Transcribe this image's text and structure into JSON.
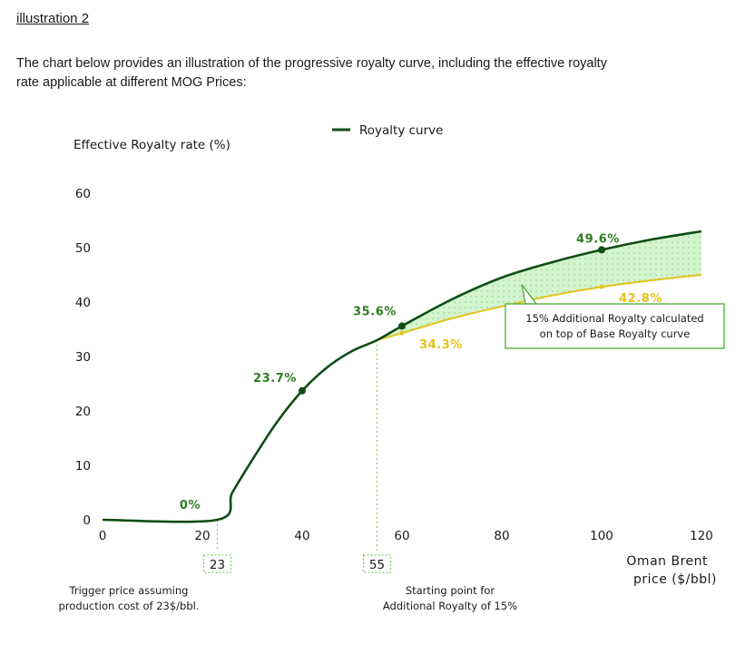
{
  "heading": "illustration 2",
  "intro": {
    "line1": "The chart below provides an illustration of the progressive royalty curve, including the effective royalty",
    "line2": "rate applicable at different MOG Prices:"
  },
  "colors": {
    "royalty_curve": "#0f4d14",
    "base_curve": "#e3c21a",
    "shaded_area": "#c9f0c4",
    "label_green": "#2e7d22",
    "label_yellow": "#e6c21a",
    "callout_border": "#4caf2f",
    "guide_line": "#7fcf6a"
  },
  "chart_data": {
    "type": "line",
    "ylabel": "Effective Royalty rate (%)",
    "xlabel_line1": "Oman Brent",
    "xlabel_line2": "price ($/bbl)",
    "legend": "Royalty curve",
    "xlim": [
      0,
      120
    ],
    "ylim": [
      0,
      60
    ],
    "x_ticks": [
      "0",
      "20",
      "40",
      "60",
      "80",
      "100",
      "120"
    ],
    "y_ticks": [
      "0",
      "10",
      "20",
      "30",
      "40",
      "50",
      "60"
    ],
    "series": [
      {
        "name": "Royalty curve",
        "x": [
          0,
          23,
          26,
          30,
          35,
          40,
          45,
          50,
          55,
          60,
          70,
          80,
          90,
          100,
          110,
          120
        ],
        "y": [
          0,
          0,
          5,
          11,
          18,
          23.7,
          28,
          31,
          33,
          35.6,
          40.5,
          44.5,
          47.3,
          49.6,
          51.5,
          53
        ]
      },
      {
        "name": "Base Royalty curve",
        "x": [
          55,
          60,
          70,
          80,
          90,
          100,
          110,
          120
        ],
        "y": [
          33,
          34.3,
          37,
          39.2,
          41.2,
          42.8,
          44,
          45
        ]
      }
    ],
    "point_labels": [
      {
        "x": 23,
        "y": 0,
        "label": "0%",
        "series": "Royalty curve"
      },
      {
        "x": 40,
        "y": 23.7,
        "label": "23.7%",
        "series": "Royalty curve"
      },
      {
        "x": 60,
        "y": 35.6,
        "label": "35.6%",
        "series": "Royalty curve"
      },
      {
        "x": 100,
        "y": 49.6,
        "label": "49.6%",
        "series": "Royalty curve"
      },
      {
        "x": 60,
        "y": 34.3,
        "label": "34.3%",
        "series": "Base Royalty curve"
      },
      {
        "x": 100,
        "y": 42.8,
        "label": "42.8%",
        "series": "Base Royalty curve"
      }
    ],
    "markers": [
      {
        "x": 23,
        "label": "23",
        "note_line1": "Trigger price assuming",
        "note_line2": "production cost of 23$/bbl."
      },
      {
        "x": 55,
        "label": "55",
        "note_line1": "Starting point for",
        "note_line2": "Additional Royalty of 15%"
      }
    ],
    "callout": {
      "line1": "15% Additional Royalty calculated",
      "line2": "on top of Base Royalty curve"
    }
  }
}
